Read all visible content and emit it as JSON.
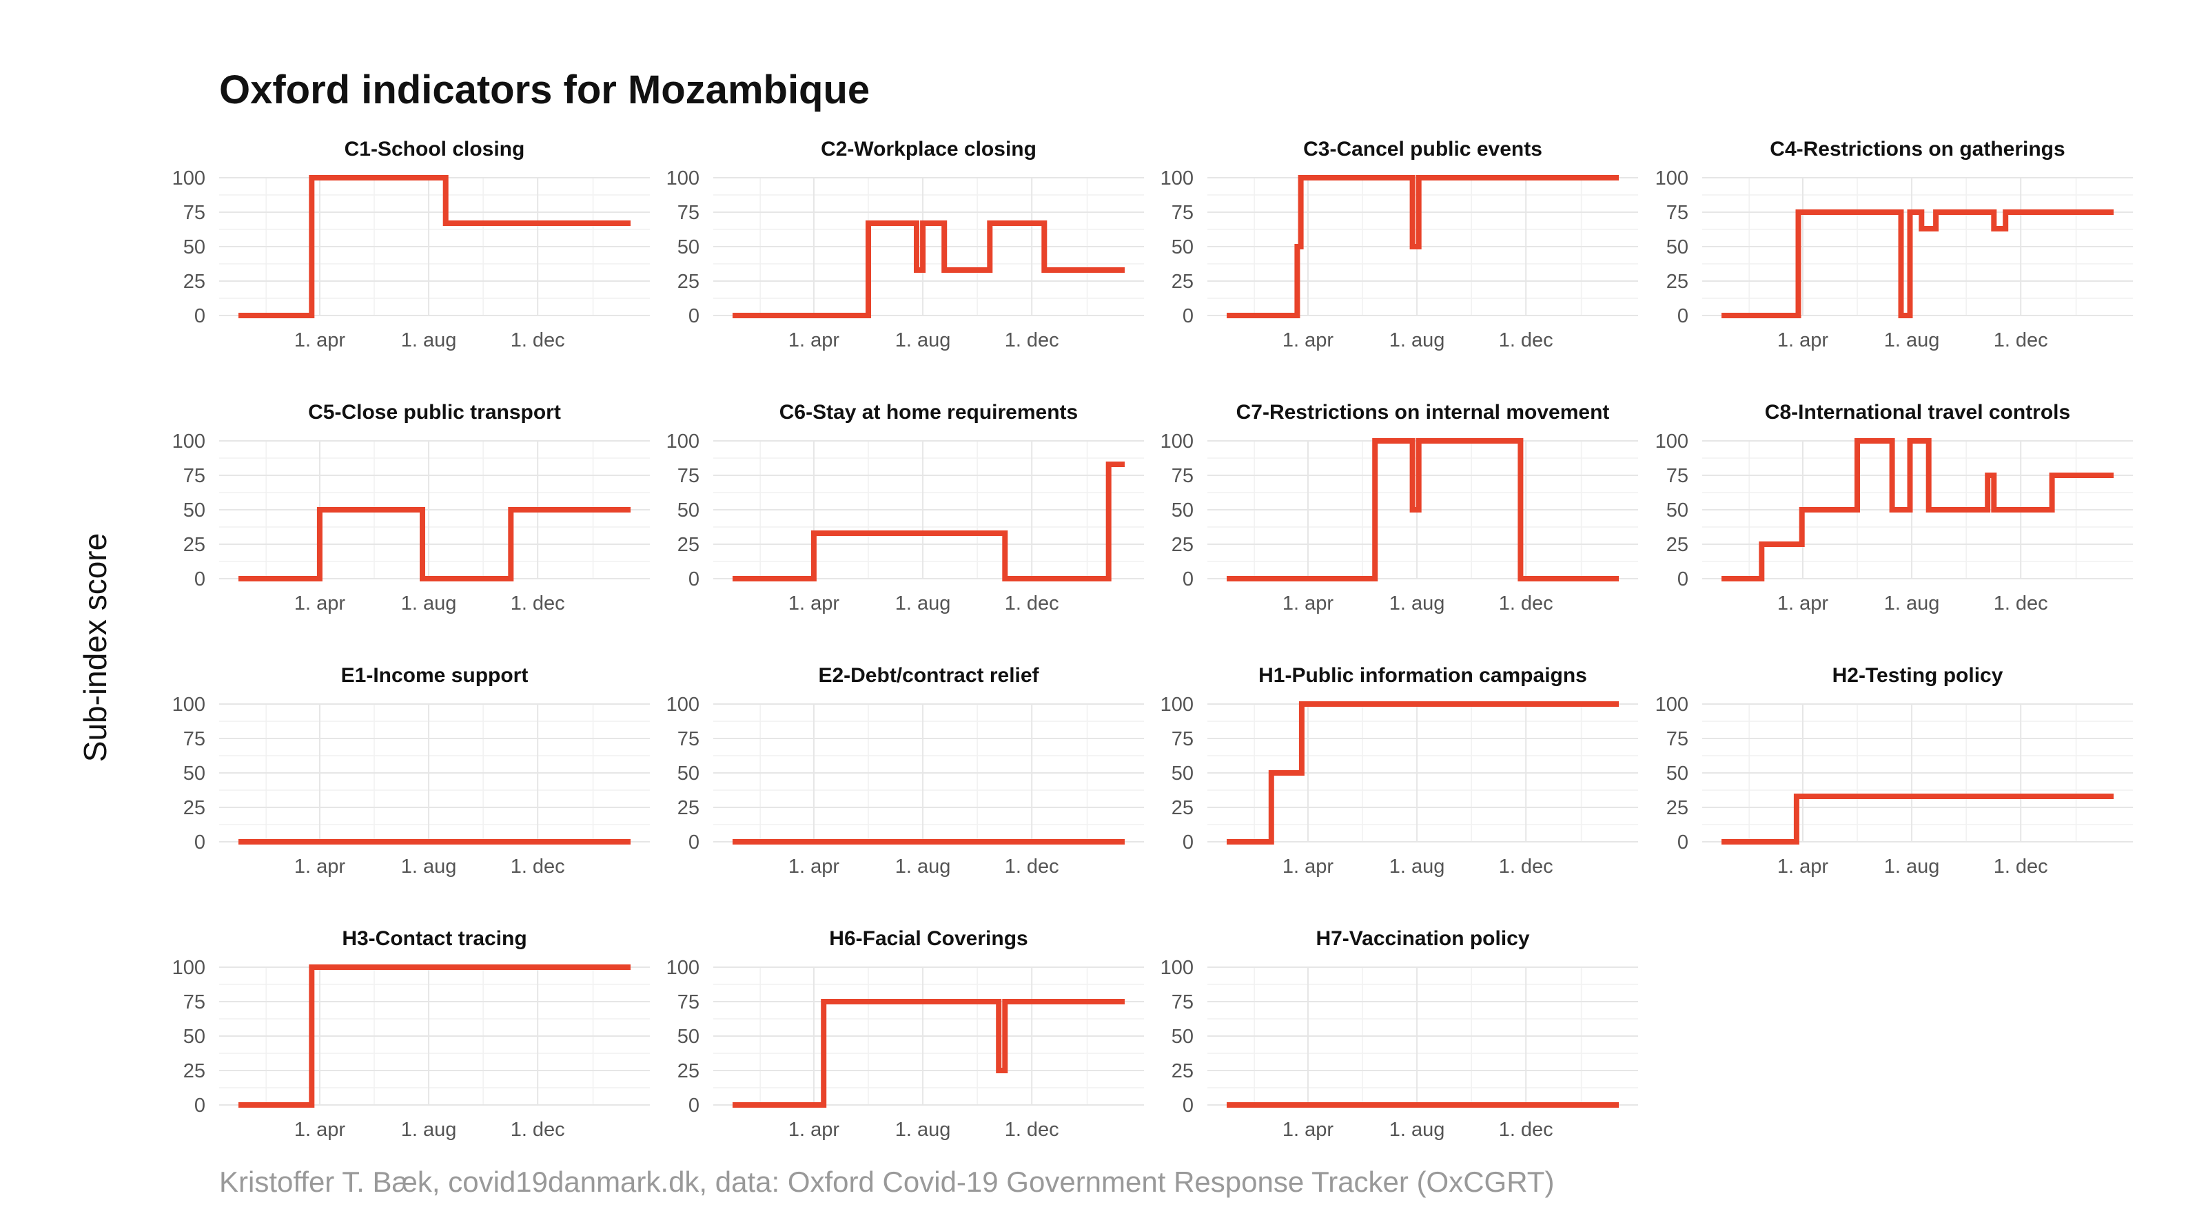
{
  "title": "Oxford indicators for Mozambique",
  "ylabel": "Sub-index score",
  "caption": "Kristoffer T. Bæk, covid19danmark.dk, data: Oxford Covid-19 Government Response Tracker (OxCGRT)",
  "colors": {
    "line": "#e8432a",
    "grid": "#e6e6e6",
    "caption": "#999999"
  },
  "chart_data": {
    "type": "line",
    "facet_grid": "4x4",
    "ylim": [
      0,
      100
    ],
    "yticks": [
      0,
      25,
      50,
      75,
      100
    ],
    "x_domain": [
      "2020-01-01",
      "2021-03-15"
    ],
    "xticks": [
      {
        "date": "2020-04-01",
        "label": "1. apr"
      },
      {
        "date": "2020-08-01",
        "label": "1. aug"
      },
      {
        "date": "2020-12-01",
        "label": "1. dec"
      }
    ],
    "grid": true,
    "panels": [
      {
        "title": "C1-School closing",
        "steps": [
          [
            "2020-01-01",
            0
          ],
          [
            "2020-03-23",
            100
          ],
          [
            "2020-08-20",
            67
          ],
          [
            "2021-03-15",
            67
          ]
        ]
      },
      {
        "title": "C2-Workplace closing",
        "steps": [
          [
            "2020-01-01",
            0
          ],
          [
            "2020-06-01",
            67
          ],
          [
            "2020-07-25",
            33
          ],
          [
            "2020-08-01",
            67
          ],
          [
            "2020-08-25",
            33
          ],
          [
            "2020-10-15",
            67
          ],
          [
            "2020-12-15",
            33
          ],
          [
            "2021-03-15",
            33
          ]
        ]
      },
      {
        "title": "C3-Cancel public events",
        "steps": [
          [
            "2020-01-01",
            0
          ],
          [
            "2020-03-20",
            50
          ],
          [
            "2020-03-24",
            100
          ],
          [
            "2020-07-27",
            50
          ],
          [
            "2020-08-03",
            100
          ],
          [
            "2021-03-15",
            100
          ]
        ]
      },
      {
        "title": "C4-Restrictions on gatherings",
        "steps": [
          [
            "2020-01-01",
            0
          ],
          [
            "2020-03-27",
            75
          ],
          [
            "2020-07-20",
            0
          ],
          [
            "2020-07-30",
            75
          ],
          [
            "2020-08-12",
            63
          ],
          [
            "2020-08-28",
            75
          ],
          [
            "2020-11-01",
            63
          ],
          [
            "2020-11-14",
            75
          ],
          [
            "2021-03-15",
            75
          ]
        ]
      },
      {
        "title": "C5-Close public transport",
        "steps": [
          [
            "2020-01-01",
            0
          ],
          [
            "2020-04-01",
            50
          ],
          [
            "2020-07-25",
            0
          ],
          [
            "2020-11-01",
            50
          ],
          [
            "2021-03-15",
            50
          ]
        ]
      },
      {
        "title": "C6-Stay at home requirements",
        "steps": [
          [
            "2020-01-01",
            0
          ],
          [
            "2020-04-01",
            33
          ],
          [
            "2020-11-01",
            0
          ],
          [
            "2021-02-25",
            83
          ],
          [
            "2021-03-15",
            83
          ]
        ]
      },
      {
        "title": "C7-Restrictions on internal movement",
        "steps": [
          [
            "2020-01-01",
            0
          ],
          [
            "2020-06-15",
            100
          ],
          [
            "2020-07-27",
            50
          ],
          [
            "2020-08-03",
            100
          ],
          [
            "2020-11-25",
            0
          ],
          [
            "2021-03-15",
            0
          ]
        ]
      },
      {
        "title": "C8-International travel controls",
        "steps": [
          [
            "2020-01-01",
            0
          ],
          [
            "2020-02-15",
            25
          ],
          [
            "2020-03-31",
            50
          ],
          [
            "2020-06-01",
            100
          ],
          [
            "2020-07-10",
            50
          ],
          [
            "2020-07-30",
            100
          ],
          [
            "2020-08-20",
            50
          ],
          [
            "2020-10-25",
            75
          ],
          [
            "2020-11-01",
            50
          ],
          [
            "2021-01-05",
            75
          ],
          [
            "2021-03-15",
            75
          ]
        ]
      },
      {
        "title": "E1-Income support",
        "steps": [
          [
            "2020-01-01",
            0
          ],
          [
            "2021-03-15",
            0
          ]
        ]
      },
      {
        "title": "E2-Debt/contract relief",
        "steps": [
          [
            "2020-01-01",
            0
          ],
          [
            "2021-03-15",
            0
          ]
        ]
      },
      {
        "title": "H1-Public information campaigns",
        "steps": [
          [
            "2020-01-01",
            0
          ],
          [
            "2020-02-20",
            50
          ],
          [
            "2020-03-25",
            100
          ],
          [
            "2021-03-15",
            100
          ]
        ]
      },
      {
        "title": "H2-Testing policy",
        "steps": [
          [
            "2020-01-01",
            0
          ],
          [
            "2020-03-25",
            33
          ],
          [
            "2021-03-15",
            33
          ]
        ]
      },
      {
        "title": "H3-Contact tracing",
        "steps": [
          [
            "2020-01-01",
            0
          ],
          [
            "2020-03-23",
            100
          ],
          [
            "2021-03-15",
            100
          ]
        ]
      },
      {
        "title": "H6-Facial Coverings",
        "steps": [
          [
            "2020-01-01",
            0
          ],
          [
            "2020-04-12",
            75
          ],
          [
            "2020-10-25",
            25
          ],
          [
            "2020-11-01",
            75
          ],
          [
            "2021-03-15",
            75
          ]
        ]
      },
      {
        "title": "H7-Vaccination policy",
        "steps": [
          [
            "2020-01-01",
            0
          ],
          [
            "2021-03-15",
            0
          ]
        ]
      }
    ]
  }
}
